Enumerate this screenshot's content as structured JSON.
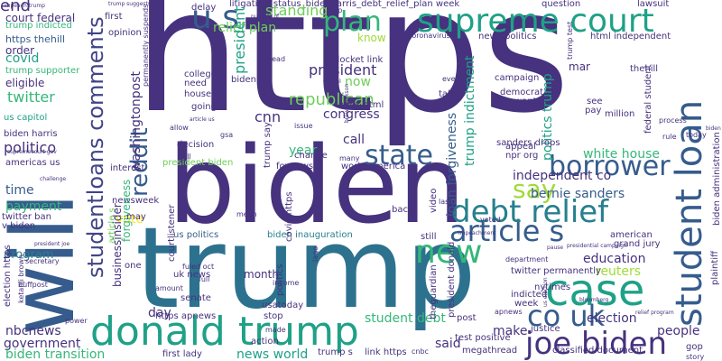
{
  "palette": {
    "dark_purple": "#46327e",
    "indigo": "#414487",
    "slate_blue": "#365c8d",
    "steel_blue": "#2c728e",
    "teal": "#277f8e",
    "sea_green": "#1fa187",
    "green": "#35b779",
    "lime": "#6ece58",
    "yellow_green": "#a0da39",
    "yellow": "#fde725",
    "background": "#ffffff"
  },
  "words": [
    {
      "id": "https",
      "text": "https",
      "color": "#46327e"
    },
    {
      "id": "biden",
      "text": "biden",
      "color": "#46327e"
    },
    {
      "id": "trump",
      "text": "trump",
      "color": "#2c728e"
    },
    {
      "id": "will",
      "text": "will",
      "color": "#365c8d"
    },
    {
      "id": "supreme_court",
      "text": "supreme court",
      "color": "#1fa187"
    },
    {
      "id": "student_loan",
      "text": "student loan",
      "color": "#365c8d"
    },
    {
      "id": "donald_trump",
      "text": "donald trump",
      "color": "#1fa187"
    },
    {
      "id": "case",
      "text": "case",
      "color": "#1fa187"
    },
    {
      "id": "joe_biden",
      "text": "joe biden",
      "color": "#46327e"
    },
    {
      "id": "new",
      "text": "new",
      "color": "#35b779"
    },
    {
      "id": "article_s",
      "text": "article s",
      "color": "#365c8d"
    },
    {
      "id": "debt_relief",
      "text": "debt relief",
      "color": "#277f8e"
    },
    {
      "id": "co_uk",
      "text": "co uk",
      "color": "#365c8d"
    },
    {
      "id": "plan",
      "text": "plan",
      "color": "#35b779"
    },
    {
      "id": "u_s",
      "text": "u s",
      "color": "#365c8d"
    },
    {
      "id": "state",
      "text": "state",
      "color": "#365c8d"
    },
    {
      "id": "borrower",
      "text": "borrower",
      "color": "#365c8d"
    },
    {
      "id": "say",
      "text": "say",
      "color": "#a0da39"
    },
    {
      "id": "reddit",
      "text": "reddit",
      "color": "#365c8d"
    },
    {
      "id": "studentloans_comments",
      "text": "studentloans comments",
      "color": "#414487"
    },
    {
      "id": "litigation_title",
      "text": "litigation_status_bidenharris_debt_relief_plan week",
      "color": "#46327e"
    },
    {
      "id": "end",
      "text": "end",
      "color": "#46327e"
    },
    {
      "id": "court_federal",
      "text": "court federal",
      "color": "#46327e"
    },
    {
      "id": "trump_indicted",
      "text": "trump indicted",
      "color": "#35b779"
    },
    {
      "id": "first",
      "text": "first",
      "color": "#46327e"
    },
    {
      "id": "https_thehill",
      "text": "https thehill",
      "color": "#365c8d"
    },
    {
      "id": "order",
      "text": "order",
      "color": "#46327e"
    },
    {
      "id": "covid",
      "text": "covid",
      "color": "#1fa187"
    },
    {
      "id": "trump_supporter",
      "text": "trump supporter",
      "color": "#35b779"
    },
    {
      "id": "eligible",
      "text": "eligible",
      "color": "#46327e"
    },
    {
      "id": "twitter",
      "text": "twitter",
      "color": "#35b779"
    },
    {
      "id": "us_capitol",
      "text": "us capitol",
      "color": "#1fa187"
    },
    {
      "id": "biden_harris",
      "text": "biden harris",
      "color": "#46327e"
    },
    {
      "id": "politico",
      "text": "politico",
      "color": "#46327e"
    },
    {
      "id": "americas_us",
      "text": "americas us",
      "color": "#46327e"
    },
    {
      "id": "time",
      "text": "time",
      "color": "#365c8d"
    },
    {
      "id": "payment",
      "text": "payment",
      "color": "#35b779"
    },
    {
      "id": "twitter_ban",
      "text": "twitter ban",
      "color": "#46327e"
    },
    {
      "id": "v_biden",
      "text": "v biden",
      "color": "#46327e"
    },
    {
      "id": "program",
      "text": "program",
      "color": "#277f8e"
    },
    {
      "id": "nbcnews",
      "text": "nbcnews",
      "color": "#46327e"
    },
    {
      "id": "government",
      "text": "government",
      "color": "#46327e"
    },
    {
      "id": "biden_transition",
      "text": "biden transition",
      "color": "#35b779"
    },
    {
      "id": "relief_plan",
      "text": "relief plan",
      "color": "#6ece58"
    },
    {
      "id": "standing",
      "text": "standing",
      "color": "#6ece58"
    },
    {
      "id": "president_trump",
      "text": "president trump",
      "color": "#1fa187"
    },
    {
      "id": "president",
      "text": "president",
      "color": "#46327e"
    },
    {
      "id": "republican",
      "text": "republican",
      "color": "#6ece58"
    },
    {
      "id": "congress",
      "text": "congress",
      "color": "#46327e"
    },
    {
      "id": "cnn",
      "text": "cnn",
      "color": "#46327e"
    },
    {
      "id": "call",
      "text": "call",
      "color": "#46327e"
    },
    {
      "id": "year",
      "text": "year",
      "color": "#35b779"
    },
    {
      "id": "washingtonpost",
      "text": "washingtonpost",
      "color": "#46327e"
    },
    {
      "id": "independent_co",
      "text": "independent co",
      "color": "#46327e"
    },
    {
      "id": "bernie_sanders",
      "text": "bernie sanders",
      "color": "#365c8d"
    },
    {
      "id": "white_house",
      "text": "white house",
      "color": "#35b779"
    },
    {
      "id": "loan_forgiveness",
      "text": "loan forgiveness",
      "color": "#365c8d"
    },
    {
      "id": "trump_indictment",
      "text": "trump indictment",
      "color": "#1fa187"
    },
    {
      "id": "politics_trump",
      "text": "politics trump",
      "color": "#1fa187"
    },
    {
      "id": "education",
      "text": "education",
      "color": "#46327e"
    },
    {
      "id": "reuters",
      "text": "reuters",
      "color": "#a0da39"
    },
    {
      "id": "election",
      "text": "election",
      "color": "#46327e"
    },
    {
      "id": "people",
      "text": "people",
      "color": "#46327e"
    },
    {
      "id": "student_debt",
      "text": "student debt",
      "color": "#35b779"
    },
    {
      "id": "make",
      "text": "make",
      "color": "#46327e"
    },
    {
      "id": "said",
      "text": "said",
      "color": "#46327e"
    },
    {
      "id": "news_world",
      "text": "news world",
      "color": "#1fa187"
    },
    {
      "id": "day",
      "text": "day",
      "color": "#46327e"
    },
    {
      "id": "vote",
      "text": "vote",
      "color": "#fde725"
    },
    {
      "id": "month",
      "text": "month",
      "color": "#46327e"
    },
    {
      "id": "uk_news",
      "text": "uk news",
      "color": "#46327e"
    },
    {
      "id": "president_biden",
      "text": "president biden",
      "color": "#6ece58"
    },
    {
      "id": "newsweek",
      "text": "newsweek",
      "color": "#46327e"
    },
    {
      "id": "biden_inauguration",
      "text": "biden inauguration",
      "color": "#277f8e"
    },
    {
      "id": "us_politics",
      "text": "us politics",
      "color": "#365c8d"
    },
    {
      "id": "article_s_small",
      "text": "article s",
      "color": "#6ece58"
    },
    {
      "id": "docket_link",
      "text": "docket link",
      "color": "#46327e"
    },
    {
      "id": "index_html",
      "text": "index html",
      "color": "#46327e"
    },
    {
      "id": "fox_news",
      "text": "foxnews",
      "color": "#46327e"
    },
    {
      "id": "world_america",
      "text": "world america",
      "color": "#46327e"
    },
    {
      "id": "news_politics",
      "text": "news politics",
      "color": "#46327e"
    },
    {
      "id": "html_independent",
      "text": "html independent",
      "color": "#46327e"
    },
    {
      "id": "campaign",
      "text": "campaign",
      "color": "#46327e"
    },
    {
      "id": "democrat",
      "text": "democrat",
      "color": "#46327e"
    },
    {
      "id": "want",
      "text": "want",
      "color": "#46327e"
    },
    {
      "id": "take",
      "text": "take",
      "color": "#46327e"
    },
    {
      "id": "now",
      "text": "now",
      "color": "#6ece58"
    },
    {
      "id": "know",
      "text": "know",
      "color": "#a0da39"
    },
    {
      "id": "mar",
      "text": "mar",
      "color": "#46327e"
    },
    {
      "id": "question",
      "text": "question",
      "color": "#46327e"
    },
    {
      "id": "lawsuit",
      "text": "lawsuit",
      "color": "#46327e"
    },
    {
      "id": "opinion",
      "text": "opinion",
      "color": "#46327e"
    },
    {
      "id": "college",
      "text": "college",
      "color": "#46327e"
    },
    {
      "id": "need",
      "text": "need",
      "color": "#46327e"
    },
    {
      "id": "house",
      "text": "house",
      "color": "#46327e"
    },
    {
      "id": "going",
      "text": "going",
      "color": "#46327e"
    },
    {
      "id": "decision",
      "text": "decision",
      "color": "#46327e"
    },
    {
      "id": "biden_s",
      "text": "biden s",
      "color": "#46327e"
    },
    {
      "id": "million",
      "text": "million",
      "color": "#46327e"
    },
    {
      "id": "see",
      "text": "see",
      "color": "#46327e"
    },
    {
      "id": "pay",
      "text": "pay",
      "color": "#46327e"
    },
    {
      "id": "thehill",
      "text": "thehill",
      "color": "#46327e"
    },
    {
      "id": "federal_student",
      "text": "federal student",
      "color": "#46327e"
    },
    {
      "id": "biden_administration",
      "text": "biden administration",
      "color": "#46327e"
    },
    {
      "id": "sanders_drops",
      "text": "sanders drops",
      "color": "#46327e"
    },
    {
      "id": "npr_org",
      "text": "npr org",
      "color": "#46327e"
    },
    {
      "id": "appeal",
      "text": "appeal",
      "color": "#46327e"
    },
    {
      "id": "american",
      "text": "american",
      "color": "#46327e"
    },
    {
      "id": "grand_jury",
      "text": "grand jury",
      "color": "#46327e"
    },
    {
      "id": "twitter_permanently",
      "text": "twitter permanently",
      "color": "#46327e"
    },
    {
      "id": "nytimes",
      "text": "nytimes",
      "color": "#46327e"
    },
    {
      "id": "indicted",
      "text": "indicted",
      "color": "#46327e"
    },
    {
      "id": "week",
      "text": "week",
      "color": "#46327e"
    },
    {
      "id": "post",
      "text": "post",
      "color": "#46327e"
    },
    {
      "id": "still",
      "text": "still",
      "color": "#46327e"
    },
    {
      "id": "back",
      "text": "back",
      "color": "#46327e"
    },
    {
      "id": "video",
      "text": "video",
      "color": "#46327e"
    },
    {
      "id": "covid_https",
      "text": "covid https",
      "color": "#46327e"
    },
    {
      "id": "courtlistener",
      "text": "courtlistener",
      "color": "#46327e"
    },
    {
      "id": "interest",
      "text": "interest",
      "color": "#46327e"
    },
    {
      "id": "forgiveness",
      "text": "forgiveness",
      "color": "#35b779"
    },
    {
      "id": "businessinsider",
      "text": "businessinsider",
      "color": "#46327e"
    },
    {
      "id": "theguardian",
      "text": "theguardian",
      "color": "#46327e"
    },
    {
      "id": "president_donald",
      "text": "president donald",
      "color": "#46327e"
    },
    {
      "id": "politics",
      "text": "politics",
      "color": "#46327e"
    },
    {
      "id": "usatoday",
      "text": "usatoday",
      "color": "#46327e"
    },
    {
      "id": "stop",
      "text": "stop",
      "color": "#46327e"
    },
    {
      "id": "action",
      "text": "action",
      "color": "#46327e"
    },
    {
      "id": "trump_s",
      "text": "trump s",
      "color": "#46327e"
    },
    {
      "id": "link_https",
      "text": "link https",
      "color": "#46327e"
    },
    {
      "id": "megathread",
      "text": "megathread",
      "color": "#46327e"
    },
    {
      "id": "classified_document",
      "text": "classified document",
      "color": "#46327e"
    },
    {
      "id": "justice",
      "text": "justice",
      "color": "#46327e"
    },
    {
      "id": "test_positive",
      "text": "test positive",
      "color": "#46327e"
    },
    {
      "id": "https_apnews",
      "text": "https apnews",
      "color": "#46327e"
    },
    {
      "id": "first_lady",
      "text": "first lady",
      "color": "#46327e"
    },
    {
      "id": "senate",
      "text": "senate",
      "color": "#46327e"
    },
    {
      "id": "election_https",
      "text": "election https",
      "color": "#46327e"
    },
    {
      "id": "plaintiff",
      "text": "plaintiff",
      "color": "#46327e"
    },
    {
      "id": "gop",
      "text": "gop",
      "color": "#46327e"
    },
    {
      "id": "delay",
      "text": "delay",
      "color": "#46327e"
    },
    {
      "id": "trump_say",
      "text": "trump say",
      "color": "#46327e"
    },
    {
      "id": "change",
      "text": "change",
      "color": "#46327e"
    },
    {
      "id": "may",
      "text": "may",
      "color": "#46327e"
    },
    {
      "id": "one",
      "text": "one",
      "color": "#46327e"
    },
    {
      "id": "coronavirus",
      "text": "coronavirus",
      "color": "#46327e"
    },
    {
      "id": "read",
      "text": "read",
      "color": "#46327e"
    },
    {
      "id": "help",
      "text": "help",
      "color": "#46327e"
    },
    {
      "id": "even",
      "text": "even",
      "color": "#46327e"
    },
    {
      "id": "trump_test",
      "text": "trump test",
      "color": "#46327e"
    },
    {
      "id": "process",
      "text": "process",
      "color": "#46327e"
    },
    {
      "id": "rule",
      "text": "rule",
      "color": "#46327e"
    },
    {
      "id": "today",
      "text": "today",
      "color": "#46327e"
    },
    {
      "id": "mean",
      "text": "mean",
      "color": "#46327e"
    },
    {
      "id": "full",
      "text": "full",
      "color": "#46327e"
    },
    {
      "id": "amount",
      "text": "amount",
      "color": "#46327e"
    },
    {
      "id": "income",
      "text": "income",
      "color": "#46327e"
    },
    {
      "id": "made",
      "text": "made",
      "color": "#46327e"
    },
    {
      "id": "many",
      "text": "many",
      "color": "#46327e"
    },
    {
      "id": "bill",
      "text": "bill",
      "color": "#46327e"
    },
    {
      "id": "gsa",
      "text": "gsa",
      "color": "#46327e"
    },
    {
      "id": "allow",
      "text": "allow",
      "color": "#46327e"
    },
    {
      "id": "issue",
      "text": "issue",
      "color": "#46327e"
    },
    {
      "id": "permanently_suspends",
      "text": "permanently suspends",
      "color": "#46327e"
    },
    {
      "id": "huffpost",
      "text": "huffpost",
      "color": "#46327e"
    },
    {
      "id": "ketanji_brown",
      "text": "ketanji brown",
      "color": "#46327e"
    },
    {
      "id": "secretary",
      "text": "secretary",
      "color": "#46327e"
    },
    {
      "id": "power",
      "text": "power",
      "color": "#46327e"
    },
    {
      "id": "story",
      "text": "story",
      "color": "#46327e"
    },
    {
      "id": "cnbc",
      "text": "cnbc",
      "color": "#46327e"
    },
    {
      "id": "voted",
      "text": "voted",
      "color": "#46327e"
    },
    {
      "id": "department",
      "text": "department",
      "color": "#46327e"
    },
    {
      "id": "apnews",
      "text": "apnews",
      "color": "#46327e"
    },
    {
      "id": "presidential_campaign",
      "text": "presidential campaign",
      "color": "#46327e"
    },
    {
      "id": "pause",
      "text": "pause",
      "color": "#46327e"
    },
    {
      "id": "impeachment",
      "text": "impeachment",
      "color": "#46327e"
    },
    {
      "id": "last",
      "text": "last",
      "color": "#46327e"
    },
    {
      "id": "lago",
      "text": "lago",
      "color": "#46327e"
    },
    {
      "id": "fully_vaccinated",
      "text": "fuled oct",
      "color": "#46327e"
    },
    {
      "id": "supremecourt_gov",
      "text": "supremecourt gov",
      "color": "#46327e"
    },
    {
      "id": "challenge",
      "text": "challenge",
      "color": "#46327e"
    },
    {
      "id": "impeach_trump",
      "text": "impeach trump",
      "color": "#46327e"
    },
    {
      "id": "trump_suggests",
      "text": "trump suggests",
      "color": "#46327e"
    },
    {
      "id": "number_of",
      "text": "number of",
      "color": "#46327e"
    },
    {
      "id": "official",
      "text": "official",
      "color": "#46327e"
    },
    {
      "id": "voting",
      "text": "voting",
      "color": "#46327e"
    },
    {
      "id": "bloomberg",
      "text": "bloomberg",
      "color": "#46327e"
    },
    {
      "id": "brown_jackson",
      "text": "brown jackson",
      "color": "#46327e"
    },
    {
      "id": "article_us",
      "text": "article us",
      "color": "#46327e"
    },
    {
      "id": "president_joe",
      "text": "president joe",
      "color": "#46327e"
    },
    {
      "id": "relief_program",
      "text": "relief program",
      "color": "#46327e"
    },
    {
      "id": "us_election",
      "text": "us election",
      "color": "#46327e"
    },
    {
      "id": "biden_admin_small",
      "text": "biden admin",
      "color": "#46327e"
    }
  ]
}
